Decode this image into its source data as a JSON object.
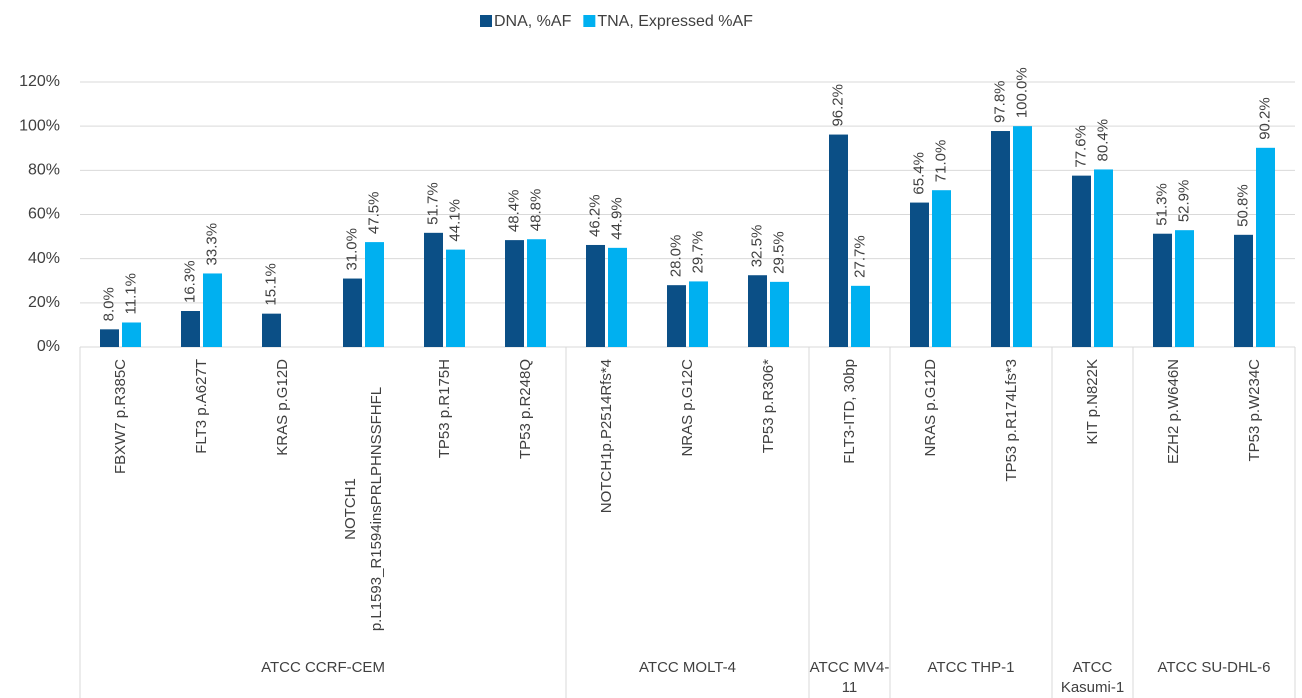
{
  "chart_data": {
    "type": "bar",
    "categories": [
      "FBXW7 p.R385C",
      "FLT3 p.A627T",
      "KRAS p.G12D",
      "NOTCH1 p.L1593_R1594insPRLPHNSSFHFL",
      "TP53 p.R175H",
      "TP53 p.R248Q",
      "NOTCH1p.P2514Rfs*4",
      "NRAS p.G12C",
      "TP53 p.R306*",
      "FLT3-ITD, 30bp",
      "NRAS p.G12D",
      "TP53 p.R174Lfs*3",
      "KIT p.N822K",
      "EZH2 p.W646N",
      "TP53 p.W234C"
    ],
    "groups": [
      {
        "name": "ATCC CCRF-CEM",
        "span": 6
      },
      {
        "name": "ATCC MOLT-4",
        "span": 3
      },
      {
        "name": "ATCC MV4-11",
        "span": 1
      },
      {
        "name": "ATCC THP-1",
        "span": 2
      },
      {
        "name": "ATCC Kasumi-1",
        "span": 1
      },
      {
        "name": "ATCC SU-DHL-6",
        "span": 2
      }
    ],
    "series": [
      {
        "name": "DNA, %AF",
        "color": "#0b4f86",
        "values": [
          8.0,
          16.3,
          15.1,
          31.0,
          51.7,
          48.4,
          46.2,
          28.0,
          32.5,
          96.2,
          65.4,
          97.8,
          77.6,
          51.3,
          50.8
        ],
        "value_labels": [
          "8.0%",
          "16.3%",
          "15.1%",
          "31.0%",
          "51.7%",
          "48.4%",
          "46.2%",
          "28.0%",
          "32.5%",
          "96.2%",
          "65.4%",
          "97.8%",
          "77.6%",
          "51.3%",
          "50.8%"
        ]
      },
      {
        "name": "TNA, Expressed %AF",
        "color": "#00b0f0",
        "values": [
          11.1,
          33.3,
          null,
          47.5,
          44.1,
          48.8,
          44.9,
          29.7,
          29.5,
          27.7,
          71.0,
          100.0,
          80.4,
          52.9,
          90.2
        ],
        "value_labels": [
          "11.1%",
          "33.3%",
          null,
          "47.5%",
          "44.1%",
          "48.8%",
          "44.9%",
          "29.7%",
          "29.5%",
          "27.7%",
          "71.0%",
          "100.0%",
          "80.4%",
          "52.9%",
          "90.2%"
        ]
      }
    ],
    "ylim": [
      0,
      120
    ],
    "yticks": [
      {
        "value": 0,
        "label": "0%"
      },
      {
        "value": 20,
        "label": "20%"
      },
      {
        "value": 40,
        "label": "40%"
      },
      {
        "value": 60,
        "label": "60%"
      },
      {
        "value": 80,
        "label": "80%"
      },
      {
        "value": 100,
        "label": "100%"
      },
      {
        "value": 120,
        "label": "120%"
      }
    ],
    "grid": true,
    "legend": "top"
  }
}
